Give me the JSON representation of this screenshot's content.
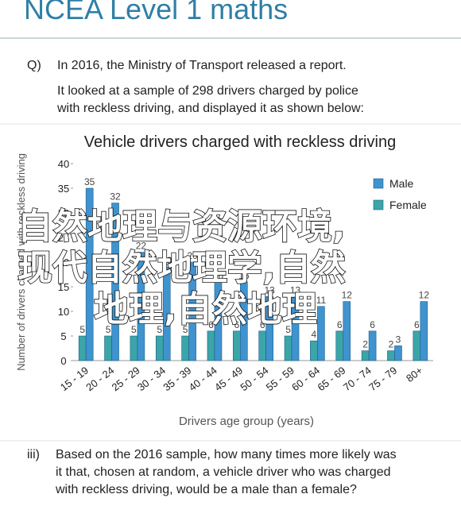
{
  "header": {
    "title": "NCEA Level 1 maths"
  },
  "question": {
    "label": "Q)",
    "lines": [
      "In 2016, the Ministry of Transport released a report.",
      "It looked at a sample of 298 drivers charged by police",
      "with reckless driving, and displayed it as shown below:"
    ]
  },
  "chart_data": {
    "type": "bar",
    "title": "Vehicle drivers charged with reckless driving",
    "x_label": "Drivers age group (years)",
    "y_label": "Number of drivers charged with reckless driving",
    "categories": [
      "15 - 19",
      "20 - 24",
      "25 - 29",
      "30 - 34",
      "35 - 39",
      "40 - 44",
      "45 - 49",
      "50 - 54",
      "55 - 59",
      "60 - 64",
      "65 - 69",
      "70 - 74",
      "75 - 79",
      "80+"
    ],
    "series": [
      {
        "name": "Male",
        "color": "#3f93cf",
        "values": [
          35,
          32,
          22,
          19,
          20,
          16,
          16,
          13,
          13,
          11,
          12,
          6,
          3,
          12
        ]
      },
      {
        "name": "Female",
        "color": "#3ba5a8",
        "values": [
          5,
          5,
          5,
          5,
          5,
          6,
          6,
          6,
          5,
          4,
          6,
          2,
          2,
          6
        ]
      }
    ],
    "ylim": [
      0,
      40
    ],
    "yticks": [
      0,
      5,
      10,
      15,
      20,
      25,
      30,
      35,
      40
    ],
    "legend": "upper right"
  },
  "part_iii": {
    "label": "iii)",
    "lines": [
      "Based on the 2016 sample, how many times more likely was",
      "it that, chosen at random, a vehicle driver who was charged",
      "with reckless driving, would be a male than a female?"
    ]
  },
  "watermark": {
    "lines": [
      "自然地理与资源环境,",
      "现代自然地理学,自然",
      "地理,自然地理"
    ]
  }
}
